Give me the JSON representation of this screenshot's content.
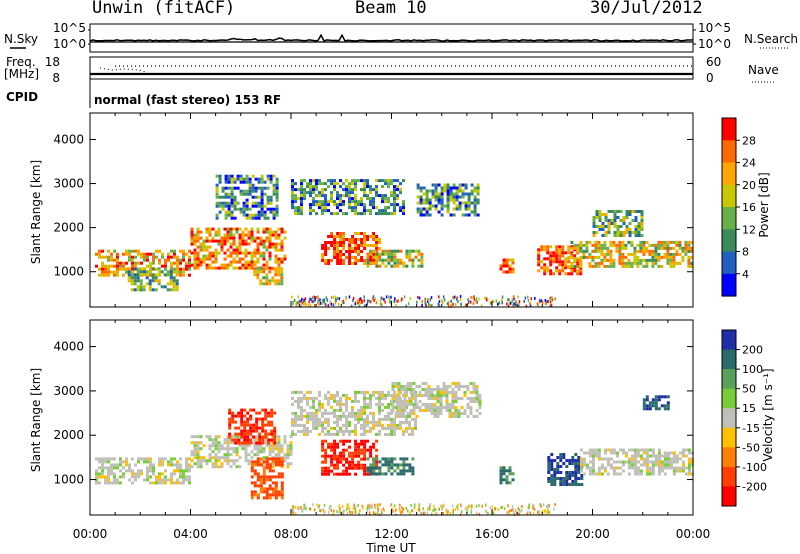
{
  "header": {
    "station": "Unwin (fitACF)",
    "beam": "Beam 10",
    "date": "30/Jul/2012"
  },
  "noise_panel": {
    "left_label": "N.Sky",
    "right_label": "N.Search",
    "ticks_left": [
      "10^5",
      "10^0"
    ],
    "ticks_right": [
      "10^5",
      "10^0"
    ]
  },
  "freq_panel": {
    "left_label": "Freq.",
    "left_unit": "[MHz]",
    "left_ticks": [
      "18",
      "8"
    ],
    "right_label": "Nave",
    "right_ticks": [
      "60",
      "0"
    ]
  },
  "cpid": {
    "label": "CPID",
    "text": "normal (fast stereo) 153 RF"
  },
  "chart_data": [
    {
      "type": "heatmap",
      "name": "power",
      "xlabel": "",
      "ylabel": "Slant Range [km]",
      "y_ticks": [
        "1000",
        "2000",
        "3000",
        "4000"
      ],
      "ylim": [
        200,
        4600
      ],
      "xlim": [
        0,
        24
      ],
      "colorbar_label": "Power [dB]",
      "colorbar_ticks": [
        "4",
        "8",
        "12",
        "16",
        "20",
        "24",
        "28"
      ],
      "colorbar_colors": [
        "#0000ff",
        "#2060c0",
        "#3a8a5a",
        "#6ab04a",
        "#c8c800",
        "#ffa500",
        "#ff6a00",
        "#ff0000"
      ],
      "echo_regions": [
        {
          "t0": 0.2,
          "t1": 4.0,
          "r0": 900,
          "r1": 1500,
          "level": 0.7
        },
        {
          "t0": 1.5,
          "t1": 3.5,
          "r0": 600,
          "r1": 1100,
          "level": 0.4
        },
        {
          "t0": 4.0,
          "t1": 7.8,
          "r0": 1100,
          "r1": 2000,
          "level": 0.75
        },
        {
          "t0": 5.0,
          "t1": 7.5,
          "r0": 2200,
          "r1": 3200,
          "level": 0.3
        },
        {
          "t0": 6.5,
          "t1": 7.6,
          "r0": 700,
          "r1": 1100,
          "level": 0.6
        },
        {
          "t0": 8.0,
          "t1": 12.5,
          "r0": 2300,
          "r1": 3100,
          "level": 0.3
        },
        {
          "t0": 9.2,
          "t1": 11.5,
          "r0": 1200,
          "r1": 1900,
          "level": 0.85
        },
        {
          "t0": 11.0,
          "t1": 13.2,
          "r0": 1100,
          "r1": 1500,
          "level": 0.55
        },
        {
          "t0": 13.0,
          "t1": 15.5,
          "r0": 2300,
          "r1": 3000,
          "level": 0.3
        },
        {
          "t0": 16.3,
          "t1": 16.8,
          "r0": 1000,
          "r1": 1300,
          "level": 0.8
        },
        {
          "t0": 17.8,
          "t1": 19.5,
          "r0": 950,
          "r1": 1600,
          "level": 0.85
        },
        {
          "t0": 19.0,
          "t1": 24.0,
          "r0": 1150,
          "r1": 1700,
          "level": 0.6
        },
        {
          "t0": 20.0,
          "t1": 22.0,
          "r0": 1800,
          "r1": 2400,
          "level": 0.4
        }
      ]
    },
    {
      "type": "heatmap",
      "name": "velocity",
      "xlabel": "Time UT",
      "ylabel": "Slant Range [km]",
      "y_ticks": [
        "1000",
        "2000",
        "3000",
        "4000"
      ],
      "x_ticks": [
        "00:00",
        "04:00",
        "08:00",
        "12:00",
        "16:00",
        "20:00",
        "00:00"
      ],
      "ylim": [
        200,
        4600
      ],
      "xlim": [
        0,
        24
      ],
      "colorbar_label": "Velocity [m s⁻¹]",
      "colorbar_ticks": [
        "200",
        "100",
        "50",
        "15",
        "-15",
        "-50",
        "-100",
        "-200"
      ],
      "colorbar_colors": [
        "#1e2ea8",
        "#2a6a6a",
        "#5aa05a",
        "#7acc3a",
        "#c0c0b8",
        "#ffc000",
        "#ff8000",
        "#ff4000",
        "#ff0000"
      ],
      "echo_regions": [
        {
          "t0": 0.2,
          "t1": 4.0,
          "r0": 900,
          "r1": 1500,
          "level": 0.0
        },
        {
          "t0": 4.0,
          "t1": 8.0,
          "r0": 1300,
          "r1": 2000,
          "level": 0.0
        },
        {
          "t0": 5.5,
          "t1": 7.4,
          "r0": 1800,
          "r1": 2600,
          "level": -0.8
        },
        {
          "t0": 6.4,
          "t1": 7.6,
          "r0": 600,
          "r1": 1500,
          "level": -0.7
        },
        {
          "t0": 8.0,
          "t1": 13.0,
          "r0": 2000,
          "r1": 3000,
          "level": 0.0
        },
        {
          "t0": 9.2,
          "t1": 11.4,
          "r0": 1100,
          "r1": 1900,
          "level": -0.9
        },
        {
          "t0": 11.0,
          "t1": 12.8,
          "r0": 1100,
          "r1": 1500,
          "level": 0.7
        },
        {
          "t0": 12.0,
          "t1": 15.5,
          "r0": 2400,
          "r1": 3200,
          "level": 0.0
        },
        {
          "t0": 16.3,
          "t1": 16.8,
          "r0": 950,
          "r1": 1300,
          "level": 0.7
        },
        {
          "t0": 18.2,
          "t1": 19.6,
          "r0": 900,
          "r1": 1600,
          "level": 0.9
        },
        {
          "t0": 19.5,
          "t1": 24.0,
          "r0": 1150,
          "r1": 1700,
          "level": 0.0
        },
        {
          "t0": 22.0,
          "t1": 23.0,
          "r0": 2600,
          "r1": 2900,
          "level": 0.8
        }
      ]
    }
  ]
}
